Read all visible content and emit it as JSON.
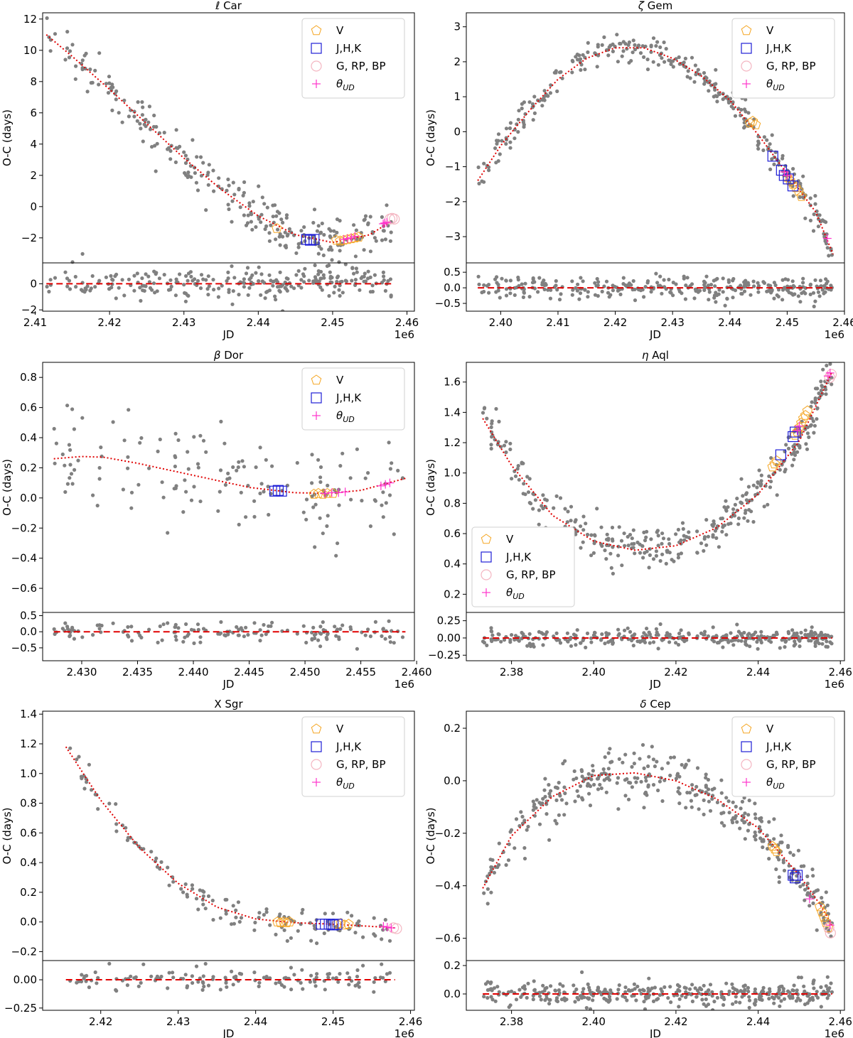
{
  "figure": {
    "y_label": "O-C (days)",
    "x_label": "JD",
    "offset_text": "1e6",
    "legend_labels": {
      "V": "V",
      "JHK": "J,H,K",
      "GAIA": "G, RP, BP",
      "THETA": "θ",
      "THETA_SUB": "UD"
    }
  },
  "colors": {
    "scatter": "#808080",
    "fit": "#e00000",
    "V": "#f5a623",
    "JHK": "#1f1fd6",
    "GAIA": "#f4b6c2",
    "THETA": "#ff33cc"
  },
  "chart_data": [
    {
      "type": "scatter",
      "title_prefix": "ℓ",
      "title_rest": " Car",
      "xlim": [
        2.411,
        2.461
      ],
      "ylim": [
        -3.6,
        12.4
      ],
      "res_ylim": [
        -2.1,
        1.6
      ],
      "xticks": [
        2.41,
        2.42,
        2.43,
        2.44,
        2.45,
        2.46
      ],
      "xtick_labels": [
        "2.41",
        "2.42",
        "2.43",
        "2.44",
        "2.45",
        "2.46"
      ],
      "yticks": [
        -2,
        0,
        2,
        4,
        6,
        8,
        10,
        12
      ],
      "ytick_labels": [
        "−2",
        "0",
        "2",
        "4",
        "6",
        "8",
        "10",
        "12"
      ],
      "res_yticks": [
        -2,
        0
      ],
      "res_ytick_labels": [
        "−2",
        "0"
      ],
      "legend": [
        "V",
        "JHK",
        "GAIA",
        "THETA"
      ],
      "legend_pos": "top-right",
      "fit": [
        [
          2.4115,
          11.0
        ],
        [
          2.415,
          9.6
        ],
        [
          2.42,
          7.5
        ],
        [
          2.425,
          5.3
        ],
        [
          2.43,
          3.1
        ],
        [
          2.435,
          1.1
        ],
        [
          2.44,
          -0.6
        ],
        [
          2.445,
          -1.8
        ],
        [
          2.45,
          -2.3
        ],
        [
          2.455,
          -1.8
        ],
        [
          2.458,
          -0.9
        ]
      ],
      "n_points": 260,
      "fit_x": [
        2.4115,
        2.458
      ],
      "scatter_sd": 0.75,
      "res_sd": 0.6,
      "markers": {
        "V": [
          [
            2.4425,
            -1.4
          ],
          [
            2.4505,
            -2.15
          ],
          [
            2.451,
            -2.2
          ],
          [
            2.4515,
            -2.15
          ],
          [
            2.452,
            -2.1
          ],
          [
            2.4525,
            -2.05
          ],
          [
            2.453,
            -2.0
          ],
          [
            2.4535,
            -1.95
          ]
        ],
        "JHK": [
          [
            2.4465,
            -2.1
          ],
          [
            2.447,
            -2.15
          ],
          [
            2.4475,
            -2.1
          ]
        ],
        "GAIA": [
          [
            2.4577,
            -0.8
          ],
          [
            2.458,
            -0.75
          ],
          [
            2.4583,
            -0.8
          ]
        ],
        "THETA": [
          [
            2.4515,
            -2.1
          ],
          [
            2.452,
            -2.05
          ],
          [
            2.4525,
            -2.0
          ],
          [
            2.453,
            -1.9
          ],
          [
            2.4568,
            -1.1
          ],
          [
            2.457,
            -1.05
          ],
          [
            2.4573,
            -1.0
          ]
        ]
      }
    },
    {
      "type": "scatter",
      "title_prefix": "ζ",
      "title_rest": " Gem",
      "xlim": [
        2.394,
        2.46
      ],
      "ylim": [
        -3.75,
        3.4
      ],
      "res_ylim": [
        -0.75,
        0.8
      ],
      "xticks": [
        2.4,
        2.41,
        2.42,
        2.43,
        2.44,
        2.45,
        2.46
      ],
      "xtick_labels": [
        "2.40",
        "2.41",
        "2.42",
        "2.43",
        "2.44",
        "2.45",
        "2.46"
      ],
      "yticks": [
        -3,
        -2,
        -1,
        0,
        1,
        2,
        3
      ],
      "ytick_labels": [
        "−3",
        "−2",
        "−1",
        "0",
        "1",
        "2",
        "3"
      ],
      "res_yticks": [
        -0.5,
        0.0,
        0.5
      ],
      "res_ytick_labels": [
        "−0.5",
        "0.0",
        "0.5"
      ],
      "legend": [
        "V",
        "JHK",
        "GAIA",
        "THETA"
      ],
      "legend_pos": "top-right",
      "fit": [
        [
          2.396,
          -1.4
        ],
        [
          2.4,
          -0.4
        ],
        [
          2.405,
          0.6
        ],
        [
          2.41,
          1.5
        ],
        [
          2.415,
          2.1
        ],
        [
          2.42,
          2.4
        ],
        [
          2.425,
          2.4
        ],
        [
          2.43,
          2.1
        ],
        [
          2.435,
          1.6
        ],
        [
          2.44,
          0.9
        ],
        [
          2.445,
          -0.1
        ],
        [
          2.45,
          -1.2
        ],
        [
          2.455,
          -2.3
        ],
        [
          2.458,
          -3.5
        ]
      ],
      "n_points": 300,
      "fit_x": [
        2.396,
        2.458
      ],
      "scatter_sd": 0.22,
      "res_sd": 0.2,
      "markers": {
        "V": [
          [
            2.4435,
            0.25
          ],
          [
            2.444,
            0.3
          ],
          [
            2.4445,
            0.2
          ],
          [
            2.45,
            -1.3
          ],
          [
            2.4505,
            -1.4
          ],
          [
            2.451,
            -1.5
          ],
          [
            2.4515,
            -1.6
          ],
          [
            2.452,
            -1.7
          ],
          [
            2.4525,
            -1.85
          ]
        ],
        "JHK": [
          [
            2.4475,
            -0.7
          ],
          [
            2.449,
            -1.1
          ],
          [
            2.4495,
            -1.25
          ],
          [
            2.4502,
            -1.35
          ],
          [
            2.451,
            -1.55
          ]
        ],
        "GAIA": [],
        "THETA": [
          [
            2.4495,
            -1.15
          ],
          [
            2.45,
            -1.25
          ],
          [
            2.457,
            -3.05
          ]
        ]
      }
    },
    {
      "type": "scatter",
      "title_prefix": "β",
      "title_rest": " Dor",
      "xlim": [
        2.4265,
        2.4598
      ],
      "ylim": [
        -0.76,
        0.9
      ],
      "res_ylim": [
        -0.9,
        0.6
      ],
      "xticks": [
        2.43,
        2.435,
        2.44,
        2.445,
        2.45,
        2.455,
        2.46
      ],
      "xtick_labels": [
        "2.430",
        "2.435",
        "2.440",
        "2.445",
        "2.450",
        "2.455",
        "2.460"
      ],
      "yticks": [
        -0.6,
        -0.4,
        -0.2,
        0.0,
        0.2,
        0.4,
        0.6,
        0.8
      ],
      "ytick_labels": [
        "−0.6",
        "−0.4",
        "−0.2",
        "0.0",
        "0.2",
        "0.4",
        "0.6",
        "0.8"
      ],
      "res_yticks": [
        -0.5,
        0.0,
        0.5
      ],
      "res_ytick_labels": [
        "−0.5",
        "0.0",
        "0.5"
      ],
      "legend": [
        "V",
        "JHK",
        "THETA"
      ],
      "legend_pos": "top-right",
      "fit": [
        [
          2.4275,
          0.26
        ],
        [
          2.43,
          0.275
        ],
        [
          2.432,
          0.27
        ],
        [
          2.435,
          0.23
        ],
        [
          2.44,
          0.15
        ],
        [
          2.445,
          0.07
        ],
        [
          2.449,
          0.035
        ],
        [
          2.452,
          0.03
        ],
        [
          2.455,
          0.05
        ],
        [
          2.459,
          0.13
        ]
      ],
      "n_points": 150,
      "fit_x": [
        2.4275,
        2.459
      ],
      "scatter_sd": 0.16,
      "res_sd": 0.16,
      "markers": {
        "V": [
          [
            2.4508,
            0.025
          ],
          [
            2.4512,
            0.03
          ],
          [
            2.4516,
            0.025
          ],
          [
            2.452,
            0.03
          ],
          [
            2.4525,
            0.03
          ]
        ],
        "JHK": [
          [
            2.4473,
            0.045
          ],
          [
            2.4476,
            0.05
          ],
          [
            2.4479,
            0.045
          ]
        ],
        "GAIA": [],
        "THETA": [
          [
            2.4518,
            0.03
          ],
          [
            2.4524,
            0.035
          ],
          [
            2.453,
            0.035
          ],
          [
            2.4536,
            0.04
          ],
          [
            2.4568,
            0.08
          ],
          [
            2.4572,
            0.09
          ],
          [
            2.4576,
            0.1
          ]
        ]
      }
    },
    {
      "type": "scatter",
      "title_prefix": "η",
      "title_rest": " Aql",
      "xlim": [
        2.369,
        2.461
      ],
      "ylim": [
        0.08,
        1.73
      ],
      "res_ylim": [
        -0.33,
        0.37
      ],
      "xticks": [
        2.38,
        2.4,
        2.42,
        2.44,
        2.46
      ],
      "xtick_labels": [
        "2.38",
        "2.40",
        "2.42",
        "2.44",
        "2.46"
      ],
      "yticks": [
        0.2,
        0.4,
        0.6,
        0.8,
        1.0,
        1.2,
        1.4,
        1.6
      ],
      "ytick_labels": [
        "0.2",
        "0.4",
        "0.6",
        "0.8",
        "1.0",
        "1.2",
        "1.4",
        "1.6"
      ],
      "res_yticks": [
        -0.25,
        0.0,
        0.25
      ],
      "res_ytick_labels": [
        "−0.25",
        "0.00",
        "0.25"
      ],
      "legend": [
        "V",
        "JHK",
        "GAIA",
        "THETA"
      ],
      "legend_pos": "bottom-left",
      "fit": [
        [
          2.373,
          1.36
        ],
        [
          2.38,
          1.05
        ],
        [
          2.39,
          0.72
        ],
        [
          2.4,
          0.55
        ],
        [
          2.41,
          0.49
        ],
        [
          2.42,
          0.52
        ],
        [
          2.43,
          0.64
        ],
        [
          2.44,
          0.86
        ],
        [
          2.45,
          1.21
        ],
        [
          2.458,
          1.67
        ]
      ],
      "n_points": 340,
      "fit_x": [
        2.373,
        2.458
      ],
      "scatter_sd": 0.07,
      "res_sd": 0.06,
      "markers": {
        "V": [
          [
            2.4435,
            1.04
          ],
          [
            2.444,
            1.06
          ],
          [
            2.4445,
            1.08
          ],
          [
            2.449,
            1.25
          ],
          [
            2.4495,
            1.27
          ],
          [
            2.45,
            1.3
          ],
          [
            2.4505,
            1.33
          ],
          [
            2.451,
            1.36
          ],
          [
            2.4515,
            1.38
          ],
          [
            2.452,
            1.41
          ]
        ],
        "JHK": [
          [
            2.4455,
            1.12
          ],
          [
            2.4485,
            1.24
          ],
          [
            2.449,
            1.27
          ]
        ],
        "GAIA": [
          [
            2.4574,
            1.63
          ],
          [
            2.4578,
            1.65
          ]
        ],
        "THETA": [
          [
            2.4495,
            1.28
          ],
          [
            2.45,
            1.31
          ],
          [
            2.457,
            1.64
          ],
          [
            2.4575,
            1.66
          ]
        ]
      }
    },
    {
      "type": "scatter",
      "title_prefix": "",
      "title_rest": "X Sgr",
      "xlim": [
        2.4125,
        2.4605
      ],
      "ylim": [
        -0.26,
        1.42
      ],
      "res_ylim": [
        -0.27,
        0.17
      ],
      "xticks": [
        2.42,
        2.43,
        2.44,
        2.45,
        2.46
      ],
      "xtick_labels": [
        "2.42",
        "2.43",
        "2.44",
        "2.45",
        "2.46"
      ],
      "yticks": [
        -0.2,
        0.0,
        0.2,
        0.4,
        0.6,
        0.8,
        1.0,
        1.2,
        1.4
      ],
      "ytick_labels": [
        "−0.2",
        "0.0",
        "0.2",
        "0.4",
        "0.6",
        "0.8",
        "1.0",
        "1.2",
        "1.4"
      ],
      "res_yticks": [
        -0.25,
        0.0
      ],
      "res_ytick_labels": [
        "−0.25",
        "0.00"
      ],
      "legend": [
        "V",
        "JHK",
        "GAIA",
        "THETA"
      ],
      "legend_pos": "top-right",
      "fit": [
        [
          2.4155,
          1.18
        ],
        [
          2.42,
          0.82
        ],
        [
          2.425,
          0.5
        ],
        [
          2.43,
          0.26
        ],
        [
          2.435,
          0.1
        ],
        [
          2.44,
          0.02
        ],
        [
          2.445,
          -0.005
        ],
        [
          2.45,
          -0.015
        ],
        [
          2.455,
          -0.03
        ],
        [
          2.458,
          -0.04
        ]
      ],
      "n_points": 130,
      "fit_x": [
        2.4155,
        2.458
      ],
      "scatter_sd": 0.05,
      "res_sd": 0.05,
      "markers": {
        "V": [
          [
            2.4428,
            0.0
          ],
          [
            2.4432,
            -0.005
          ],
          [
            2.4436,
            0.0
          ],
          [
            2.444,
            -0.005
          ],
          [
            2.4444,
            0.0
          ],
          [
            2.4505,
            -0.015
          ],
          [
            2.451,
            -0.01
          ],
          [
            2.4515,
            -0.02
          ],
          [
            2.452,
            -0.015
          ]
        ],
        "JHK": [
          [
            2.4485,
            -0.015
          ],
          [
            2.449,
            -0.015
          ],
          [
            2.4495,
            -0.015
          ],
          [
            2.45,
            -0.02
          ],
          [
            2.4505,
            -0.015
          ]
        ],
        "GAIA": [
          [
            2.4578,
            -0.04
          ],
          [
            2.4582,
            -0.045
          ]
        ],
        "THETA": [
          [
            2.4565,
            -0.03
          ],
          [
            2.457,
            -0.035
          ],
          [
            2.4575,
            -0.04
          ]
        ]
      }
    },
    {
      "type": "scatter",
      "title_prefix": "δ",
      "title_rest": " Cep",
      "xlim": [
        2.369,
        2.461
      ],
      "ylim": [
        -0.685,
        0.265
      ],
      "res_ylim": [
        -0.115,
        0.235
      ],
      "xticks": [
        2.38,
        2.4,
        2.42,
        2.44,
        2.46
      ],
      "xtick_labels": [
        "2.38",
        "2.40",
        "2.42",
        "2.44",
        "2.46"
      ],
      "yticks": [
        -0.6,
        -0.4,
        -0.2,
        0.0,
        0.2
      ],
      "ytick_labels": [
        "−0.6",
        "−0.4",
        "−0.2",
        "0.0",
        "0.2"
      ],
      "res_yticks": [
        0.0,
        0.2
      ],
      "res_ytick_labels": [
        "0.0",
        "0.2"
      ],
      "legend": [
        "V",
        "JHK",
        "GAIA",
        "THETA"
      ],
      "legend_pos": "top-right",
      "fit": [
        [
          2.373,
          -0.41
        ],
        [
          2.38,
          -0.21
        ],
        [
          2.39,
          -0.06
        ],
        [
          2.4,
          0.02
        ],
        [
          2.41,
          0.03
        ],
        [
          2.42,
          0.0
        ],
        [
          2.43,
          -0.07
        ],
        [
          2.44,
          -0.18
        ],
        [
          2.45,
          -0.36
        ],
        [
          2.455,
          -0.47
        ],
        [
          2.458,
          -0.55
        ]
      ],
      "n_points": 360,
      "fit_x": [
        2.373,
        2.458
      ],
      "scatter_sd": 0.045,
      "res_sd": 0.04,
      "markers": {
        "V": [
          [
            2.4435,
            -0.25
          ],
          [
            2.444,
            -0.26
          ],
          [
            2.4445,
            -0.27
          ],
          [
            2.455,
            -0.48
          ],
          [
            2.4555,
            -0.5
          ],
          [
            2.456,
            -0.52
          ],
          [
            2.4565,
            -0.54
          ],
          [
            2.457,
            -0.56
          ]
        ],
        "JHK": [
          [
            2.4485,
            -0.36
          ],
          [
            2.449,
            -0.37
          ],
          [
            2.4495,
            -0.36
          ]
        ],
        "GAIA": [
          [
            2.4572,
            -0.56
          ],
          [
            2.4576,
            -0.58
          ]
        ],
        "THETA": [
          [
            2.4525,
            -0.45
          ],
          [
            2.4575,
            -0.55
          ]
        ]
      }
    }
  ]
}
